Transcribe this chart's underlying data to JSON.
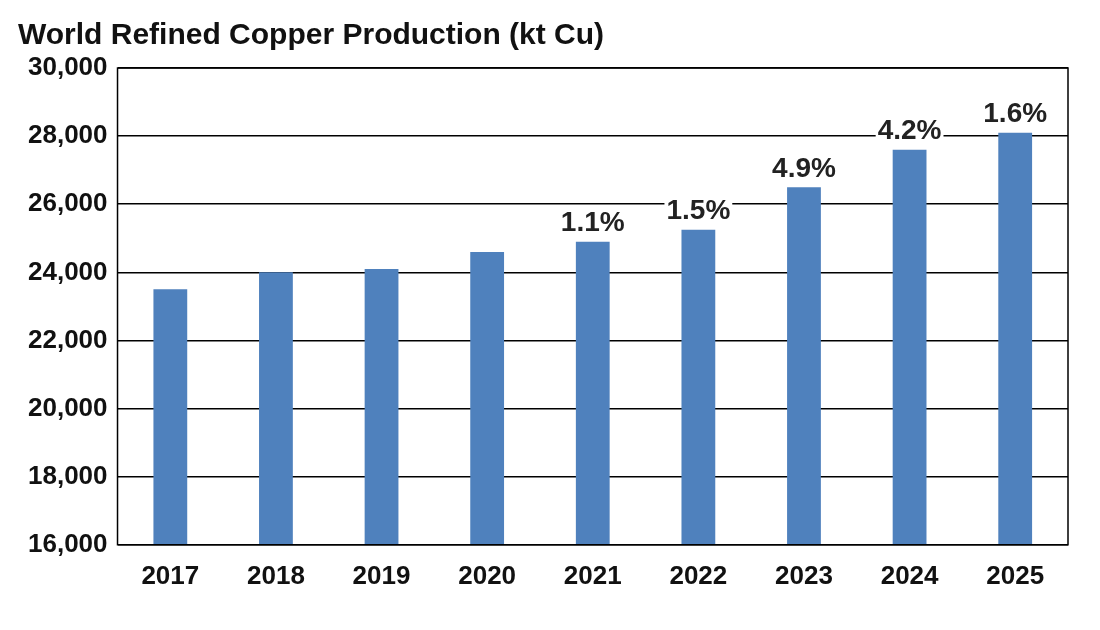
{
  "chart_data": {
    "type": "bar",
    "title": "World Refined Copper Production (kt Cu)",
    "categories": [
      "2017",
      "2018",
      "2019",
      "2020",
      "2021",
      "2022",
      "2023",
      "2024",
      "2025"
    ],
    "values": [
      23500,
      24000,
      24100,
      24600,
      24900,
      25250,
      26500,
      27600,
      28100
    ],
    "annotations": [
      {
        "text": "1.1%",
        "x": "2021",
        "y": 24900
      },
      {
        "text": "1.5%",
        "x": "2022",
        "y": 25250
      },
      {
        "text": "4.9%",
        "x": "2023",
        "y": 26500
      },
      {
        "text": "4.2%",
        "x": "2024",
        "y": 27600
      },
      {
        "text": "1.6%",
        "x": "2025",
        "y": 28100
      }
    ],
    "color": "#4f81bd",
    "ylim": [
      16000,
      30000
    ],
    "yticks": [
      {
        "value": 16000,
        "label": "16,000"
      },
      {
        "value": 18000,
        "label": "18,000"
      },
      {
        "value": 20000,
        "label": "20,000"
      },
      {
        "value": 22000,
        "label": "22,000"
      },
      {
        "value": 24000,
        "label": "24,000"
      },
      {
        "value": 26000,
        "label": "26,000"
      },
      {
        "value": 28000,
        "label": "28,000"
      },
      {
        "value": 30000,
        "label": "30,000"
      }
    ],
    "grid": "y"
  }
}
